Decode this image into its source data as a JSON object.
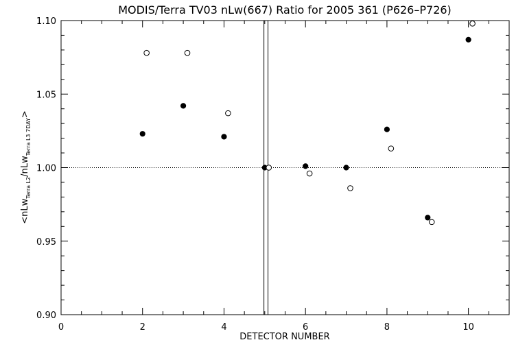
{
  "chart_data": {
    "type": "scatter",
    "title": "MODIS/Terra TV03 nLw(667) Ratio for 2005 361 (P626–P726)",
    "xlabel": "DETECTOR NUMBER",
    "ylabel": {
      "prefix": "<nLw",
      "sub1": "Terra L2",
      "mid": "/nLw",
      "sub2": "Terra L3 7DAY",
      "suffix": ">"
    },
    "xlim": [
      0,
      11
    ],
    "ylim": [
      0.9,
      1.1
    ],
    "x_ticks": [
      {
        "value": 0,
        "label": "0"
      },
      {
        "value": 2,
        "label": "2"
      },
      {
        "value": 4,
        "label": "4"
      },
      {
        "value": 6,
        "label": "6"
      },
      {
        "value": 8,
        "label": "8"
      },
      {
        "value": 10,
        "label": "10"
      }
    ],
    "y_ticks": [
      {
        "value": 0.9,
        "label": "0.90"
      },
      {
        "value": 0.95,
        "label": "0.95"
      },
      {
        "value": 1.0,
        "label": "1.00"
      },
      {
        "value": 1.05,
        "label": "1.05"
      },
      {
        "value": 1.1,
        "label": "1.10"
      }
    ],
    "reference_line_y": 1.0,
    "vertical_lines_x": [
      4.98,
      5.08
    ],
    "series": [
      {
        "marker": "filled-circle",
        "points": [
          {
            "x": 2,
            "y": 1.023
          },
          {
            "x": 3,
            "y": 1.042
          },
          {
            "x": 4,
            "y": 1.021
          },
          {
            "x": 5,
            "y": 1.0
          },
          {
            "x": 6,
            "y": 1.001
          },
          {
            "x": 7,
            "y": 1.0
          },
          {
            "x": 8,
            "y": 1.026
          },
          {
            "x": 9,
            "y": 0.966
          },
          {
            "x": 10,
            "y": 1.087
          }
        ]
      },
      {
        "marker": "open-circle",
        "points": [
          {
            "x": 2.1,
            "y": 1.078
          },
          {
            "x": 3.1,
            "y": 1.078
          },
          {
            "x": 4.1,
            "y": 1.037
          },
          {
            "x": 5.1,
            "y": 1.0
          },
          {
            "x": 6.1,
            "y": 0.996
          },
          {
            "x": 7.1,
            "y": 0.986
          },
          {
            "x": 8.1,
            "y": 1.013
          },
          {
            "x": 9.1,
            "y": 0.963
          },
          {
            "x": 10.1,
            "y": 1.098
          }
        ]
      }
    ],
    "grid": false,
    "legend": "none"
  }
}
